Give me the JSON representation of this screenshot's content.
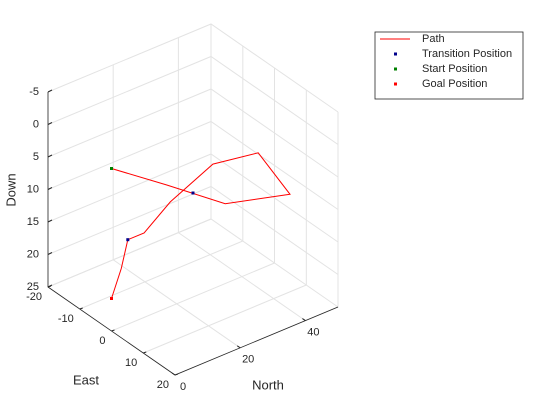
{
  "chart_data": {
    "type": "line3d",
    "xlabel": "North",
    "ylabel": "East",
    "zlabel": "Down",
    "xlim": [
      0,
      50
    ],
    "xticks": [
      0,
      20,
      40
    ],
    "ylim": [
      -20,
      20
    ],
    "yticks": [
      -20,
      -10,
      0,
      10,
      20
    ],
    "zlim": [
      -5,
      25
    ],
    "zticks": [
      -5,
      0,
      5,
      10,
      15,
      20,
      25
    ],
    "zreverse": true,
    "grid": true,
    "legend": "northeast",
    "series": [
      {
        "name": "Path",
        "color": "#ff0000",
        "style": "line",
        "x": [
          0,
          15,
          30,
          45,
          45,
          35,
          20,
          10,
          5,
          3,
          0
        ],
        "y": [
          0,
          2,
          5,
          10,
          0,
          -4,
          -2,
          0,
          0,
          0,
          0
        ],
        "z": [
          0,
          5,
          10,
          10,
          7,
          8,
          10,
          12,
          12,
          16,
          20
        ]
      },
      {
        "name": "Transition Position",
        "color": "#00008b",
        "style": "marker",
        "x": [
          0,
          25,
          5,
          0
        ],
        "y": [
          0,
          0,
          0,
          0
        ],
        "z": [
          0,
          9,
          12,
          20
        ]
      },
      {
        "name": "Start Position",
        "color": "#008000",
        "style": "marker",
        "x": [
          0
        ],
        "y": [
          0
        ],
        "z": [
          0
        ]
      },
      {
        "name": "Goal Position",
        "color": "#ff0000",
        "style": "marker",
        "x": [
          0
        ],
        "y": [
          0
        ],
        "z": [
          20
        ]
      }
    ]
  }
}
